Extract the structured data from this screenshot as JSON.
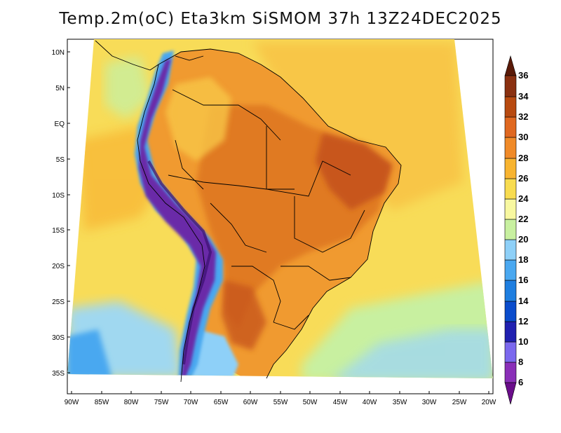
{
  "title": "Temp.2m(oC) Eta3km SiSMOM 37h 13Z24DEC2025",
  "map": {
    "variable": "2 m temperature",
    "unit": "oC",
    "lat_labels": [
      "10N",
      "5N",
      "EQ",
      "5S",
      "10S",
      "15S",
      "20S",
      "25S",
      "30S",
      "35S"
    ],
    "lon_labels": [
      "90W",
      "85W",
      "80W",
      "75W",
      "70W",
      "65W",
      "60W",
      "55W",
      "50W",
      "45W",
      "40W",
      "35W",
      "30W",
      "25W",
      "20W"
    ]
  },
  "colorbar": {
    "levels": [
      "6",
      "8",
      "10",
      "12",
      "14",
      "16",
      "18",
      "20",
      "22",
      "24",
      "26",
      "28",
      "30",
      "32",
      "34",
      "36"
    ],
    "colors": [
      "#6a0d8a",
      "#8a2fb8",
      "#7b68ee",
      "#2020b0",
      "#0a4ccc",
      "#1e7ee0",
      "#4aa8f0",
      "#8ed0f8",
      "#c8f0a0",
      "#f8f8a0",
      "#f8dc50",
      "#f8b430",
      "#f08a28",
      "#e06820",
      "#b84a10",
      "#8a3010",
      "#5a1a08"
    ]
  },
  "colors": {
    "ocean_warm": "#f8c646",
    "ocean_mild": "#f8e070",
    "ocean_cool": "#a0d8f0",
    "land_hot": "#f08a28",
    "andes": "#6a2aa8"
  }
}
